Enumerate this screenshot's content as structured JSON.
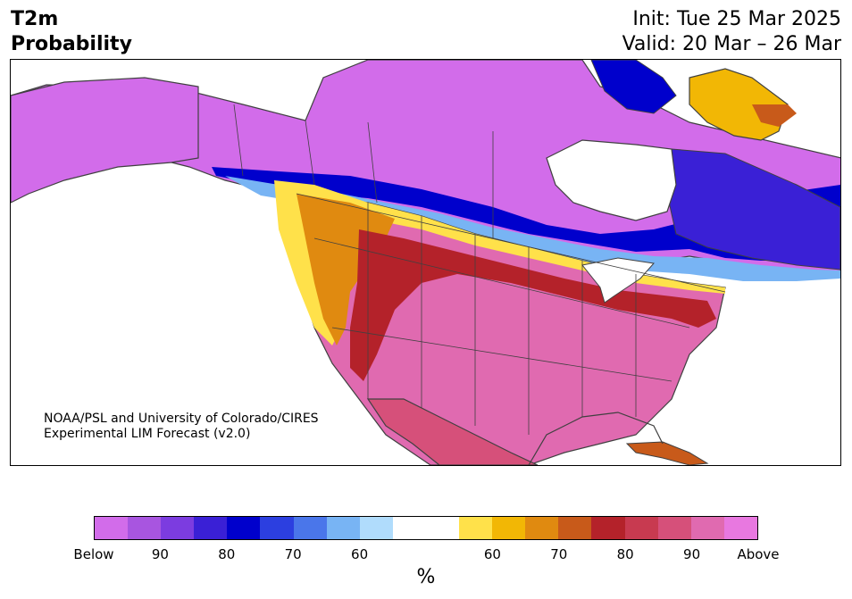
{
  "header": {
    "title_line1": "T2m",
    "title_line2": "Probability",
    "init_label": "Init: Tue 25 Mar 2025",
    "valid_label": "Valid: 20 Mar – 26 Mar"
  },
  "credit": {
    "line1": "NOAA/PSL and University of Colorado/CIRES",
    "line2": "Experimental LIM Forecast (v2.0)"
  },
  "colorbar": {
    "colors": [
      "#d26cea",
      "#a855e0",
      "#7c3ce0",
      "#3a20d6",
      "#0000cc",
      "#2c3fe0",
      "#4a76ea",
      "#78b4f4",
      "#b0dcfc",
      "#ffffff",
      "#ffffff",
      "#ffe14a",
      "#f2b705",
      "#e08a10",
      "#c85a1a",
      "#b4222a",
      "#c83a50",
      "#d6507a",
      "#e06ab0",
      "#e878e0"
    ],
    "tick_labels": [
      "Below",
      "90",
      "80",
      "70",
      "60",
      "60",
      "70",
      "80",
      "90",
      "Above"
    ],
    "unit": "%"
  },
  "map": {
    "region": "North America",
    "colors": {
      "far_below": "#d26cea",
      "below_mid": "#7c3ce0",
      "below_strong": "#0000cc",
      "below_light": "#78b4f4",
      "above_light": "#ffe14a",
      "above_mid": "#e08a10",
      "above_strong": "#b4222a",
      "far_above": "#e06ab0",
      "water": "#ffffff",
      "borders": "#404040"
    }
  }
}
